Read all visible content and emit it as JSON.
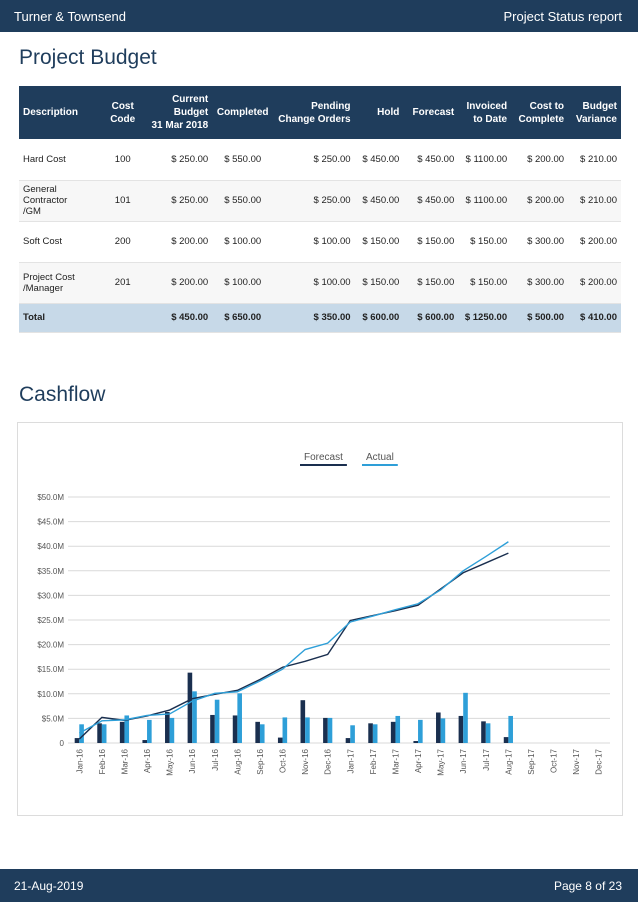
{
  "header": {
    "company": "Turner & Townsend",
    "report": "Project Status report"
  },
  "budget": {
    "title": "Project Budget",
    "columns": [
      "Description",
      "Cost\nCode",
      "Current\nBudget\n31 Mar 2018",
      "Completed",
      "Pending\nChange Orders",
      "Hold",
      "Forecast",
      "Invoiced\nto Date",
      "Cost to\nComplete",
      "Budget\nVariance"
    ],
    "rows": [
      [
        "Hard Cost",
        "100",
        "$ 250.00",
        "$ 550.00",
        "$ 250.00",
        "$ 450.00",
        "$ 450.00",
        "$ 1100.00",
        "$ 200.00",
        "$ 210.00"
      ],
      [
        "General Contractor\n/GM",
        "101",
        "$ 250.00",
        "$ 550.00",
        "$ 250.00",
        "$ 450.00",
        "$ 450.00",
        "$ 1100.00",
        "$ 200.00",
        "$ 210.00"
      ],
      [
        "Soft Cost",
        "200",
        "$ 200.00",
        "$ 100.00",
        "$ 100.00",
        "$ 150.00",
        "$ 150.00",
        "$ 150.00",
        "$ 300.00",
        "$ 200.00"
      ],
      [
        "Project Cost\n/Manager",
        "201",
        "$ 200.00",
        "$ 100.00",
        "$ 100.00",
        "$ 150.00",
        "$ 150.00",
        "$ 150.00",
        "$ 300.00",
        "$ 200.00"
      ]
    ],
    "total": [
      "Total",
      "",
      "$ 450.00",
      "$ 650.00",
      "$ 350.00",
      "$ 600.00",
      "$ 600.00",
      "$ 1250.00",
      "$ 500.00",
      "$ 410.00"
    ]
  },
  "cashflow": {
    "title": "Cashflow"
  },
  "chart_data": {
    "type": "bar",
    "categories": [
      "Jan-16",
      "Feb-16",
      "Mar-16",
      "Apr-16",
      "May-16",
      "Jun-16",
      "Jul-16",
      "Aug-16",
      "Sep-16",
      "Oct-16",
      "Nov-16",
      "Dec-16",
      "Jan-17",
      "Feb-17",
      "Mar-17",
      "Apr-17",
      "May-17",
      "Jun-17",
      "Jul-17",
      "Aug-17",
      "Sep-17",
      "Oct-17",
      "Nov-17",
      "Dec-17"
    ],
    "yticks": [
      "0",
      "$5.0M",
      "$10.0M",
      "$15.0M",
      "$20.0M",
      "$25.0M",
      "$30.0M",
      "$35.0M",
      "$40.0M",
      "$45.0M",
      "$50.0M"
    ],
    "ylim": [
      0,
      50
    ],
    "grid": true,
    "legend_position": "top-center",
    "colors": {
      "forecast": "#1a2f4f",
      "actual": "#2e9fd8"
    },
    "series": [
      {
        "name": "Forecast",
        "kind": "bar",
        "values": [
          1.0,
          4.0,
          4.3,
          0.6,
          6.3,
          14.3,
          5.7,
          5.6,
          4.3,
          1.1,
          8.7,
          5.1,
          1.0,
          4.0,
          4.3,
          0.4,
          6.2,
          5.5,
          4.4,
          1.2,
          null,
          null,
          null,
          null
        ]
      },
      {
        "name": "Actual",
        "kind": "bar",
        "values": [
          3.8,
          3.8,
          5.6,
          4.7,
          5.1,
          10.5,
          8.8,
          10.1,
          3.8,
          5.2,
          5.2,
          5.1,
          3.6,
          3.8,
          5.5,
          4.7,
          5.0,
          10.2,
          4.0,
          5.5,
          null,
          null,
          null,
          null
        ]
      },
      {
        "name": "Forecast",
        "kind": "line",
        "values": [
          0.8,
          5.2,
          4.6,
          5.5,
          6.7,
          9.0,
          9.9,
          10.7,
          12.9,
          15.4,
          16.6,
          18.0,
          24.9,
          25.9,
          26.9,
          28.0,
          31.3,
          34.6,
          36.6,
          38.6,
          null,
          null,
          null,
          null
        ]
      },
      {
        "name": "Actual",
        "kind": "line",
        "values": [
          2.0,
          4.5,
          4.7,
          5.6,
          5.9,
          8.5,
          10.1,
          10.4,
          12.6,
          15.0,
          19.0,
          20.3,
          24.6,
          25.8,
          27.1,
          28.3,
          31.1,
          35.0,
          37.9,
          40.9,
          null,
          null,
          null,
          null
        ]
      }
    ]
  },
  "footer": {
    "date": "21-Aug-2019",
    "page": "Page 8 of 23"
  }
}
